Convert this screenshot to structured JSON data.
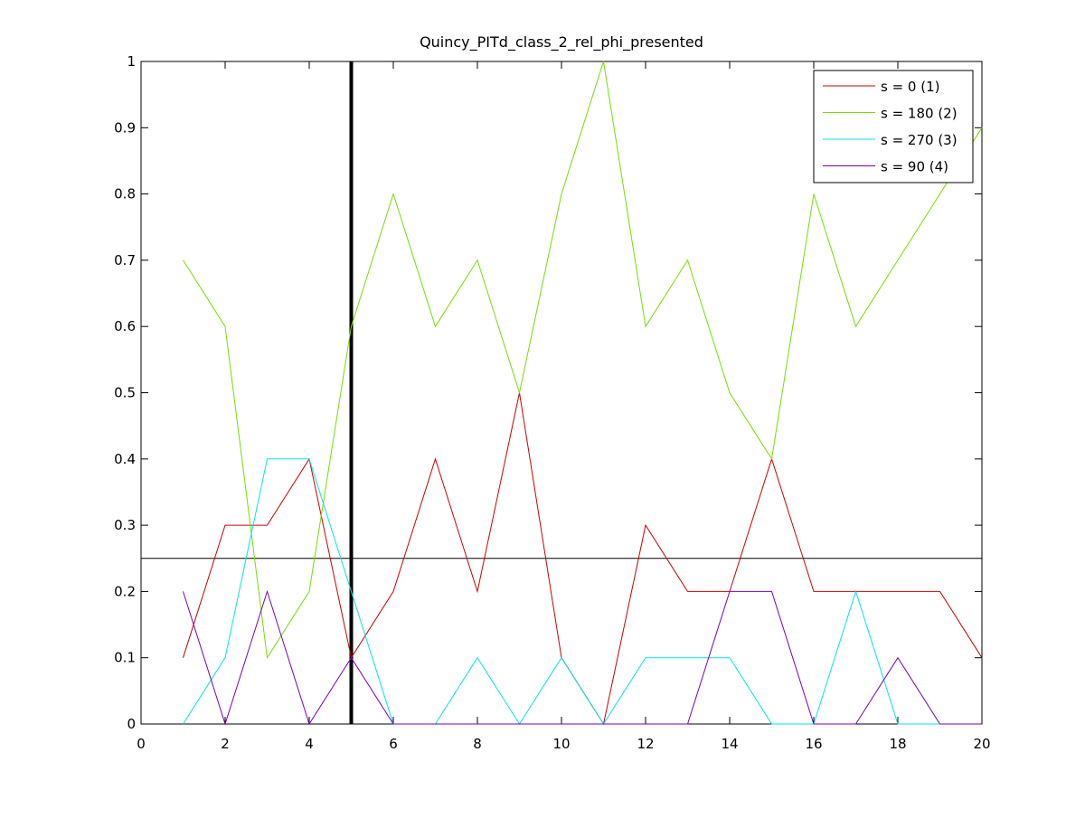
{
  "chart_data": {
    "type": "line",
    "title": "Quincy_PITd_class_2_rel_phi_presented",
    "xlabel": "",
    "ylabel": "",
    "xlim": [
      0,
      20
    ],
    "ylim": [
      0,
      1
    ],
    "x_ticks": [
      "0",
      "2",
      "4",
      "6",
      "8",
      "10",
      "12",
      "14",
      "16",
      "18",
      "20"
    ],
    "y_ticks": [
      "0",
      "0.1",
      "0.2",
      "0.3",
      "0.4",
      "0.5",
      "0.6",
      "0.7",
      "0.8",
      "0.9",
      "1"
    ],
    "grid": false,
    "legend_position": "top-right",
    "x": [
      1,
      2,
      3,
      4,
      5,
      6,
      7,
      8,
      9,
      10,
      11,
      12,
      13,
      14,
      15,
      16,
      17,
      18,
      19,
      20
    ],
    "series": [
      {
        "name": "s = 0 (1)",
        "color": "#cc0000",
        "values": [
          0.1,
          0.3,
          0.3,
          0.4,
          0.1,
          0.2,
          0.4,
          0.2,
          0.5,
          0.1,
          0.0,
          0.3,
          0.2,
          0.2,
          0.4,
          0.2,
          0.2,
          0.2,
          0.2,
          0.1
        ]
      },
      {
        "name": "s = 180 (2)",
        "color": "#77dd00",
        "values": [
          0.7,
          0.6,
          0.1,
          0.2,
          0.6,
          0.8,
          0.6,
          0.7,
          0.5,
          0.8,
          1.0,
          0.6,
          0.7,
          0.5,
          0.4,
          0.8,
          0.6,
          0.7,
          0.8,
          0.9
        ]
      },
      {
        "name": "s = 270 (3)",
        "color": "#00e5e5",
        "values": [
          0.0,
          0.1,
          0.4,
          0.4,
          0.2,
          0.0,
          0.0,
          0.1,
          0.0,
          0.1,
          0.0,
          0.1,
          0.1,
          0.1,
          0.0,
          0.0,
          0.2,
          0.0,
          0.0,
          0.0
        ]
      },
      {
        "name": "s = 90 (4)",
        "color": "#7700bb",
        "values": [
          0.2,
          0.0,
          0.2,
          0.0,
          0.1,
          0.0,
          0.0,
          0.0,
          0.0,
          0.0,
          0.0,
          0.0,
          0.0,
          0.2,
          0.2,
          0.0,
          0.0,
          0.1,
          0.0,
          0.0
        ]
      }
    ],
    "reference_lines": {
      "horizontal": {
        "y": 0.25,
        "color": "#000000"
      },
      "vertical": {
        "x": 5,
        "color": "#000000"
      }
    }
  }
}
